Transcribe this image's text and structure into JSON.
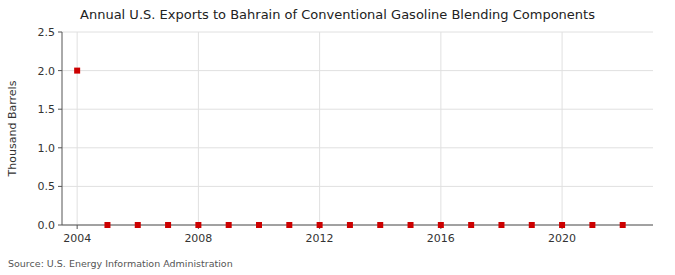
{
  "chart_data": {
    "type": "scatter",
    "title": "Annual U.S. Exports to Bahrain of Conventional Gasoline Blending Components",
    "ylabel": "Thousand Barrels",
    "source": "Source: U.S. Energy Information Administration",
    "x": [
      2004,
      2005,
      2006,
      2007,
      2008,
      2009,
      2010,
      2011,
      2012,
      2013,
      2014,
      2015,
      2016,
      2017,
      2018,
      2019,
      2020,
      2021,
      2022
    ],
    "values": [
      2.0,
      0.0,
      0.0,
      0.0,
      0.0,
      0.0,
      0.0,
      0.0,
      0.0,
      0.0,
      0.0,
      0.0,
      0.0,
      0.0,
      0.0,
      0.0,
      0.0,
      0.0,
      0.0
    ],
    "color": "#cc0000",
    "marker": "square",
    "xlim": [
      2003.5,
      2023.0
    ],
    "ylim": [
      0.0,
      2.5
    ],
    "xticks": [
      2004,
      2008,
      2012,
      2016,
      2020
    ],
    "yticks": [
      {
        "value": 0.0,
        "label": "0.0"
      },
      0.5,
      {
        "value": 1.0,
        "label": "1.0"
      },
      1.5,
      {
        "value": 2.0,
        "label": "2.0"
      },
      2.5
    ],
    "grid": true
  }
}
